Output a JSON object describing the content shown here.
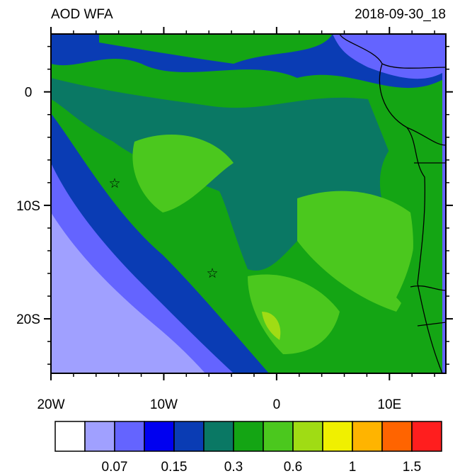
{
  "title": "AOD WFA",
  "date": "2018-09-30_18",
  "map": {
    "xlim": [
      -20,
      15
    ],
    "ylim": [
      -24.8,
      5.1
    ],
    "xticks": [
      {
        "value": -20,
        "label": "20W"
      },
      {
        "value": -10,
        "label": "10W"
      },
      0,
      {
        "value": 10,
        "label": "10E"
      }
    ],
    "yticks": [
      0,
      {
        "value": -10,
        "label": "10S"
      },
      {
        "value": -20,
        "label": "20S"
      }
    ]
  },
  "colorbar": {
    "colors": [
      "#ffffff",
      "#a0a0ff",
      "#6464ff",
      "#0000f0",
      "#0a3cb4",
      "#0a7864",
      "#14a514",
      "#4bc81e",
      "#a0dc14",
      "#f0f000",
      "#ffb400",
      "#ff6400",
      "#ff1e1e"
    ],
    "labels": [
      0.07,
      0.15,
      0.3,
      0.6,
      1,
      1.5
    ]
  }
}
